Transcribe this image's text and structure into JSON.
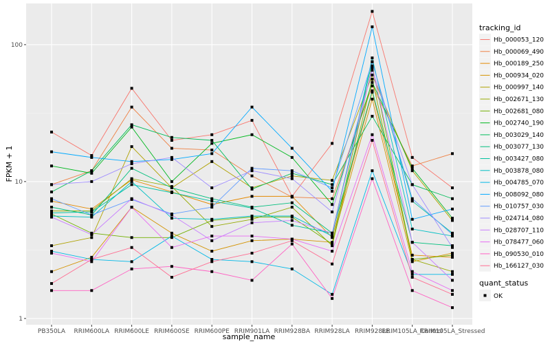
{
  "chart_data": {
    "type": "line",
    "xlabel": "sample_name",
    "ylabel": "FPKM + 1",
    "y_scale": "log10",
    "ylim": [
      0.9,
      200
    ],
    "y_ticks": [
      1,
      10,
      100
    ],
    "y_tick_labels": [
      "1",
      "10",
      "100"
    ],
    "grid": true,
    "legend_position": "right",
    "categories": [
      "PB350LA",
      "RRIM600LA",
      "RRIM600LE",
      "RRIM600SE",
      "RRIM600PE",
      "RRIM901LA",
      "RRIM928BA",
      "RRIM928LA",
      "RRIM928LE",
      "RRIM105LA_Control",
      "RRIM105LA_Stressed"
    ],
    "legend_title": "tracking_id",
    "series": [
      {
        "name": "Hb_000053_120",
        "color": "#F8766D",
        "values": [
          23,
          15.5,
          48,
          20,
          22,
          28,
          7.8,
          19,
          175,
          15,
          9
        ]
      },
      {
        "name": "Hb_000069_490",
        "color": "#EE8043",
        "values": [
          9.5,
          12,
          35,
          17.5,
          17,
          11,
          7.7,
          7.5,
          50,
          13,
          16
        ]
      },
      {
        "name": "Hb_000189_250",
        "color": "#E38900",
        "values": [
          7.2,
          6.3,
          10.3,
          8.4,
          6.8,
          7.8,
          7.8,
          3.9,
          45,
          2.9,
          2.8
        ]
      },
      {
        "name": "Hb_000934_020",
        "color": "#D39200",
        "values": [
          2.2,
          2.8,
          6.5,
          4.2,
          3.1,
          3.7,
          3.8,
          3.6,
          40,
          2.6,
          3
        ]
      },
      {
        "name": "Hb_000997_140",
        "color": "#AFA100",
        "values": [
          3.4,
          3.9,
          18,
          9,
          14,
          9,
          11,
          10.2,
          60,
          12,
          5.2
        ]
      },
      {
        "name": "Hb_002671_130",
        "color": "#96A900",
        "values": [
          6.1,
          6.1,
          10.5,
          9.2,
          4.7,
          5.3,
          6.5,
          3.4,
          56,
          2.7,
          2.2
        ]
      },
      {
        "name": "Hb_002681_080",
        "color": "#72B000",
        "values": [
          5.8,
          4.2,
          3.9,
          3.9,
          5.2,
          5.5,
          5.5,
          3.5,
          70,
          2.7,
          2.9
        ]
      },
      {
        "name": "Hb_002740_190",
        "color": "#00B81F",
        "values": [
          13,
          11.5,
          25,
          10,
          19,
          22,
          15,
          6.8,
          53,
          12.5,
          5.4
        ]
      },
      {
        "name": "Hb_003029_140",
        "color": "#00BC59",
        "values": [
          8.4,
          12,
          26,
          21,
          20,
          8.8,
          11.5,
          9.5,
          30,
          9.5,
          7.5
        ]
      },
      {
        "name": "Hb_003077_130",
        "color": "#00BF7D",
        "values": [
          6.5,
          5.7,
          12.5,
          9,
          7.5,
          6.5,
          7,
          4.2,
          46,
          3.6,
          3.4
        ]
      },
      {
        "name": "Hb_003427_080",
        "color": "#00C19E",
        "values": [
          5.9,
          6,
          9.5,
          8.3,
          7.2,
          6.4,
          4.8,
          4.2,
          75,
          7.2,
          4.2
        ]
      },
      {
        "name": "Hb_003878_080",
        "color": "#00BFC4",
        "values": [
          5.6,
          5.5,
          10,
          5.4,
          5.3,
          5.6,
          5.6,
          4,
          80,
          4.5,
          4
        ]
      },
      {
        "name": "Hb_004785_070",
        "color": "#00B8E7",
        "values": [
          3.1,
          2.7,
          2.6,
          4,
          2.7,
          2.6,
          2.3,
          1.5,
          12,
          2.1,
          2.1
        ]
      },
      {
        "name": "Hb_008092_080",
        "color": "#00A9FF",
        "values": [
          16.5,
          15,
          14,
          14.5,
          16,
          35,
          17.5,
          8.5,
          135,
          5.3,
          6.3
        ]
      },
      {
        "name": "Hb_010757_030",
        "color": "#619CFF",
        "values": [
          7.5,
          5.7,
          7.4,
          5.8,
          6.5,
          12.5,
          12,
          9,
          75,
          7.5,
          4.1
        ]
      },
      {
        "name": "Hb_024714_080",
        "color": "#9F8CFF",
        "values": [
          9.5,
          10,
          13.5,
          15,
          9,
          12,
          10.5,
          6,
          65,
          9.5,
          3.3
        ]
      },
      {
        "name": "Hb_028707_110",
        "color": "#C77CFF",
        "values": [
          5.5,
          4.1,
          7.5,
          5.7,
          3.7,
          5,
          5.2,
          4.2,
          68,
          3.6,
          1.9
        ]
      },
      {
        "name": "Hb_078477_060",
        "color": "#E76BF3",
        "values": [
          3,
          2.6,
          6.5,
          3.3,
          4,
          4,
          3.8,
          3.1,
          22,
          2.2,
          1.6
        ]
      },
      {
        "name": "Hb_090530_010",
        "color": "#FF61C3",
        "values": [
          1.6,
          1.6,
          2.3,
          2.4,
          2.2,
          1.9,
          3.5,
          1.4,
          10.5,
          1.6,
          1.2
        ]
      },
      {
        "name": "Hb_166127_030",
        "color": "#FF6C91",
        "values": [
          1.8,
          2.7,
          3.3,
          2.0,
          2.6,
          3.0,
          3.7,
          2.5,
          20,
          2.0,
          1.5
        ]
      }
    ],
    "shape_legend": {
      "title": "quant_status",
      "items": [
        {
          "label": "OK",
          "shape": "square"
        }
      ]
    }
  }
}
